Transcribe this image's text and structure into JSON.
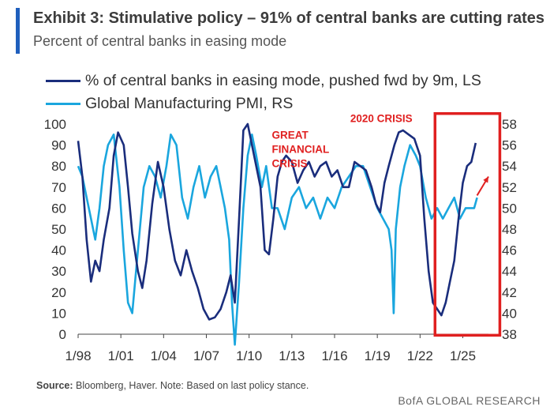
{
  "header": {
    "title": "Exhibit 3: Stimulative policy – 91% of central banks are cutting rates",
    "subtitle": "Percent of central banks in easing mode"
  },
  "footer": {
    "source_label": "Source:",
    "source_text": " Bloomberg, Haver. Note: Based on last policy stance.",
    "brand": "BofA GLOBAL RESEARCH"
  },
  "chart_data": {
    "type": "line",
    "colors": {
      "series_1": "#1a2d7c",
      "series_2": "#1aa6de",
      "annotation": "#e02020"
    },
    "x_ticks": [
      "1/98",
      "1/01",
      "1/04",
      "1/07",
      "1/10",
      "1/13",
      "1/16",
      "1/19",
      "1/22",
      "1/25"
    ],
    "xlim": [
      1998.0,
      2026.8
    ],
    "left_axis": {
      "ylim": [
        0,
        100
      ],
      "ticks": [
        0,
        10,
        20,
        30,
        40,
        50,
        60,
        70,
        80,
        90,
        100
      ]
    },
    "right_axis": {
      "ylim": [
        38,
        58
      ],
      "ticks": [
        38,
        40,
        42,
        44,
        46,
        48,
        50,
        52,
        54,
        56,
        58
      ]
    },
    "grid": false,
    "legend": "top-left",
    "series": [
      {
        "name": "% of central banks in easing mode, pushed fwd by 9m, LS",
        "axis": "left",
        "points": [
          [
            1998.0,
            92
          ],
          [
            1998.3,
            75
          ],
          [
            1998.6,
            45
          ],
          [
            1998.9,
            25
          ],
          [
            1999.2,
            35
          ],
          [
            1999.5,
            30
          ],
          [
            1999.8,
            45
          ],
          [
            2000.2,
            60
          ],
          [
            2000.5,
            85
          ],
          [
            2000.8,
            96
          ],
          [
            2001.2,
            90
          ],
          [
            2001.5,
            70
          ],
          [
            2001.8,
            48
          ],
          [
            2002.2,
            30
          ],
          [
            2002.5,
            22
          ],
          [
            2002.8,
            35
          ],
          [
            2003.2,
            62
          ],
          [
            2003.6,
            82
          ],
          [
            2004.0,
            70
          ],
          [
            2004.4,
            50
          ],
          [
            2004.8,
            35
          ],
          [
            2005.2,
            28
          ],
          [
            2005.6,
            40
          ],
          [
            2006.0,
            30
          ],
          [
            2006.4,
            22
          ],
          [
            2006.8,
            12
          ],
          [
            2007.2,
            7
          ],
          [
            2007.6,
            8
          ],
          [
            2008.0,
            12
          ],
          [
            2008.4,
            20
          ],
          [
            2008.7,
            28
          ],
          [
            2009.0,
            15
          ],
          [
            2009.3,
            55
          ],
          [
            2009.6,
            97
          ],
          [
            2009.9,
            100
          ],
          [
            2010.2,
            90
          ],
          [
            2010.5,
            80
          ],
          [
            2010.8,
            70
          ],
          [
            2011.1,
            40
          ],
          [
            2011.4,
            38
          ],
          [
            2011.7,
            55
          ],
          [
            2012.0,
            75
          ],
          [
            2012.3,
            82
          ],
          [
            2012.6,
            85
          ],
          [
            2013.0,
            82
          ],
          [
            2013.4,
            72
          ],
          [
            2013.8,
            78
          ],
          [
            2014.2,
            82
          ],
          [
            2014.6,
            75
          ],
          [
            2015.0,
            80
          ],
          [
            2015.4,
            82
          ],
          [
            2015.8,
            75
          ],
          [
            2016.2,
            78
          ],
          [
            2016.6,
            70
          ],
          [
            2017.0,
            70
          ],
          [
            2017.4,
            82
          ],
          [
            2017.8,
            80
          ],
          [
            2018.2,
            78
          ],
          [
            2018.6,
            70
          ],
          [
            2018.9,
            62
          ],
          [
            2019.2,
            58
          ],
          [
            2019.5,
            72
          ],
          [
            2019.8,
            80
          ],
          [
            2020.2,
            90
          ],
          [
            2020.5,
            96
          ],
          [
            2020.8,
            97
          ],
          [
            2021.2,
            95
          ],
          [
            2021.6,
            93
          ],
          [
            2022.0,
            85
          ],
          [
            2022.3,
            55
          ],
          [
            2022.6,
            30
          ],
          [
            2022.9,
            15
          ],
          [
            2023.2,
            12
          ],
          [
            2023.5,
            9
          ],
          [
            2023.8,
            15
          ],
          [
            2024.1,
            25
          ],
          [
            2024.4,
            35
          ],
          [
            2024.7,
            55
          ],
          [
            2025.0,
            72
          ],
          [
            2025.3,
            80
          ],
          [
            2025.6,
            82
          ],
          [
            2025.9,
            91
          ]
        ]
      },
      {
        "name": "Global Manufacturing PMI, RS",
        "axis": "right",
        "points": [
          [
            1998.0,
            54
          ],
          [
            1998.3,
            53
          ],
          [
            1998.6,
            51
          ],
          [
            1998.9,
            49
          ],
          [
            1999.2,
            47
          ],
          [
            1999.5,
            50
          ],
          [
            1999.8,
            54
          ],
          [
            2000.1,
            56
          ],
          [
            2000.5,
            57
          ],
          [
            2000.9,
            52
          ],
          [
            2001.2,
            46
          ],
          [
            2001.5,
            41
          ],
          [
            2001.8,
            40
          ],
          [
            2002.2,
            46
          ],
          [
            2002.6,
            52
          ],
          [
            2003.0,
            54
          ],
          [
            2003.4,
            53
          ],
          [
            2003.8,
            51
          ],
          [
            2004.2,
            54
          ],
          [
            2004.5,
            57
          ],
          [
            2004.9,
            56
          ],
          [
            2005.3,
            51
          ],
          [
            2005.7,
            49
          ],
          [
            2006.1,
            52
          ],
          [
            2006.5,
            54
          ],
          [
            2006.9,
            51
          ],
          [
            2007.3,
            53
          ],
          [
            2007.7,
            54
          ],
          [
            2008.0,
            52
          ],
          [
            2008.3,
            50
          ],
          [
            2008.6,
            47
          ],
          [
            2008.8,
            41
          ],
          [
            2009.0,
            37
          ],
          [
            2009.3,
            43
          ],
          [
            2009.6,
            50
          ],
          [
            2009.9,
            55
          ],
          [
            2010.2,
            57
          ],
          [
            2010.5,
            55
          ],
          [
            2010.9,
            52
          ],
          [
            2011.2,
            54
          ],
          [
            2011.6,
            50
          ],
          [
            2012.0,
            50
          ],
          [
            2012.5,
            48
          ],
          [
            2013.0,
            51
          ],
          [
            2013.5,
            52
          ],
          [
            2014.0,
            50
          ],
          [
            2014.5,
            51
          ],
          [
            2015.0,
            49
          ],
          [
            2015.5,
            51
          ],
          [
            2016.0,
            50
          ],
          [
            2016.5,
            52
          ],
          [
            2017.0,
            53
          ],
          [
            2017.5,
            54
          ],
          [
            2018.0,
            54
          ],
          [
            2018.5,
            52
          ],
          [
            2019.0,
            50
          ],
          [
            2019.4,
            49
          ],
          [
            2019.8,
            48
          ],
          [
            2020.0,
            46
          ],
          [
            2020.15,
            40
          ],
          [
            2020.3,
            48
          ],
          [
            2020.6,
            52
          ],
          [
            2020.9,
            54
          ],
          [
            2021.3,
            56
          ],
          [
            2021.7,
            55
          ],
          [
            2022.0,
            54
          ],
          [
            2022.4,
            51
          ],
          [
            2022.8,
            49
          ],
          [
            2023.2,
            50
          ],
          [
            2023.6,
            49
          ],
          [
            2024.0,
            50
          ],
          [
            2024.4,
            51
          ],
          [
            2024.8,
            49
          ],
          [
            2025.2,
            50
          ],
          [
            2025.5,
            50
          ],
          [
            2025.8,
            50
          ],
          [
            2026.0,
            51
          ]
        ]
      }
    ],
    "annotations": [
      {
        "text": [
          "GREAT",
          "FINANCIAL",
          "CRISIS"
        ],
        "x": 2011.6,
        "y": 93
      },
      {
        "text": [
          "2020 CRISIS"
        ],
        "x": 2017.1,
        "y": 101
      }
    ],
    "highlight_box": {
      "x0": 2023.05,
      "x1": 2027.6,
      "y0": -0.5,
      "y1": 105
    },
    "arrow": {
      "from": [
        2026.0,
        66
      ],
      "to": [
        2026.8,
        75
      ]
    }
  }
}
